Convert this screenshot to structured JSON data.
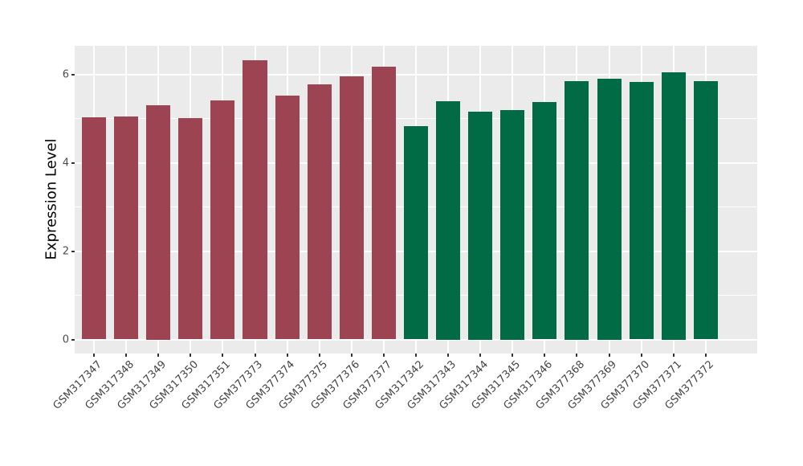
{
  "chart_data": {
    "type": "bar",
    "title": "",
    "xlabel": "",
    "ylabel": "Expression Level",
    "ylim": [
      0,
      6.65
    ],
    "yticks": [
      0,
      2,
      4,
      6
    ],
    "minor_gridlines": [
      1,
      3,
      5
    ],
    "x_tick_rotation": 45,
    "legend": "none",
    "grid": "on",
    "panel_background": "#EBEBEB",
    "grid_color": "#FFFFFF",
    "group_colors": {
      "group1": "#9C4452",
      "group2": "#006B45"
    },
    "categories": [
      "GSM317347",
      "GSM317348",
      "GSM317349",
      "GSM317350",
      "GSM317351",
      "GSM377373",
      "GSM377374",
      "GSM377375",
      "GSM377376",
      "GSM377377",
      "GSM317342",
      "GSM317343",
      "GSM317344",
      "GSM317345",
      "GSM317346",
      "GSM377368",
      "GSM377369",
      "GSM377370",
      "GSM377371",
      "GSM377372"
    ],
    "values": [
      5.02,
      5.04,
      5.3,
      5.01,
      5.41,
      6.32,
      5.52,
      5.77,
      5.96,
      6.18,
      4.82,
      5.4,
      5.15,
      5.2,
      5.37,
      5.85,
      5.9,
      5.82,
      6.05,
      5.84
    ],
    "bar_colors": [
      "#9C4452",
      "#9C4452",
      "#9C4452",
      "#9C4452",
      "#9C4452",
      "#9C4452",
      "#9C4452",
      "#9C4452",
      "#9C4452",
      "#9C4452",
      "#006B45",
      "#006B45",
      "#006B45",
      "#006B45",
      "#006B45",
      "#006B45",
      "#006B45",
      "#006B45",
      "#006B45",
      "#006B45"
    ]
  }
}
